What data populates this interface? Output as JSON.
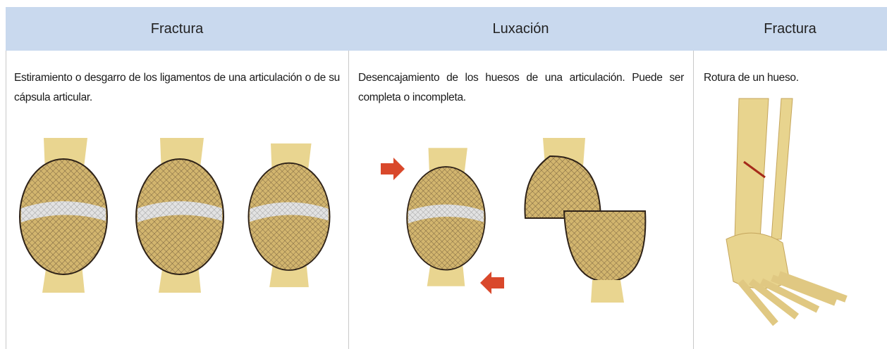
{
  "table": {
    "header": [
      "Fractura",
      "Luxación",
      "Fractura"
    ],
    "rows": [
      [
        "Estiramiento o desgarro de los ligamentos de una articulación o de su cápsula articular.",
        "Desencajamiento de los huesos de una articulación. Puede ser completa o incompleta.",
        "Rotura de un hueso."
      ]
    ]
  }
}
